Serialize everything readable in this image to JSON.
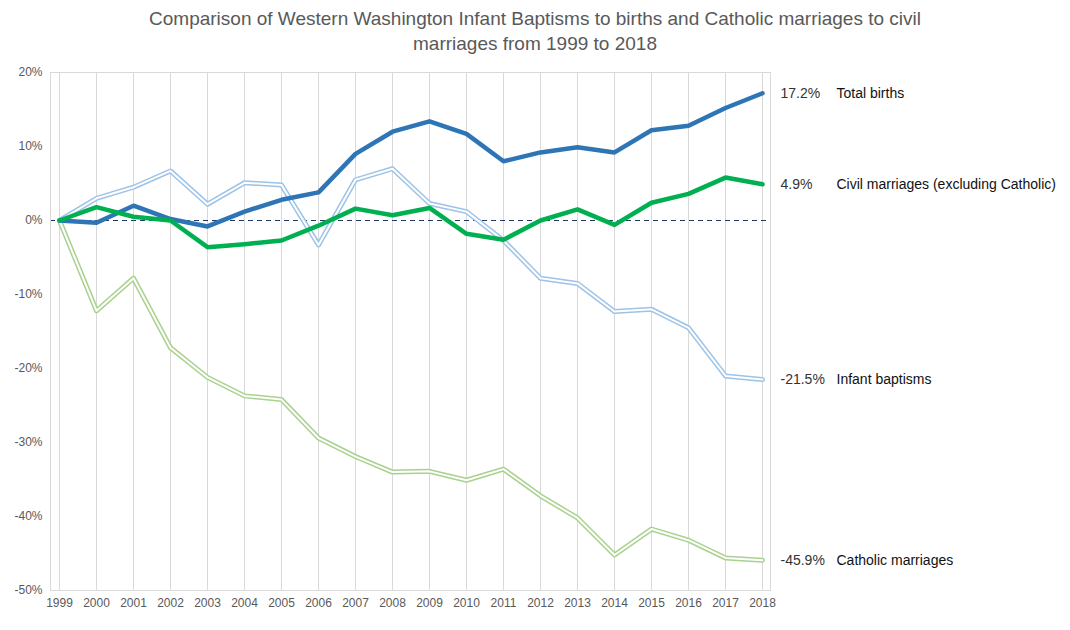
{
  "chart_data": {
    "type": "line",
    "title": "Comparison of Western Washington Infant Baptisms to births and Catholic marriages to civil marriages from 1999 to 2018",
    "categories": [
      "1999",
      "2000",
      "2001",
      "2002",
      "2003",
      "2004",
      "2005",
      "2006",
      "2007",
      "2008",
      "2009",
      "2010",
      "2011",
      "2012",
      "2013",
      "2014",
      "2015",
      "2016",
      "2017",
      "2018"
    ],
    "ylim": [
      -50,
      20
    ],
    "yticks": [
      {
        "value": -50,
        "label": "-50%"
      },
      {
        "value": -40,
        "label": "-40%"
      },
      {
        "value": -30,
        "label": "-30%"
      },
      {
        "value": -20,
        "label": "-20%"
      },
      {
        "value": -10,
        "label": "-10%"
      },
      {
        "value": 0,
        "label": "0%"
      },
      {
        "value": 10,
        "label": "10%"
      },
      {
        "value": 20,
        "label": "20%"
      }
    ],
    "grid": "x",
    "series": [
      {
        "name": "Total births",
        "color": "#2e75b6",
        "line_style": "solid",
        "values": [
          0,
          -0.3,
          2,
          0.2,
          -0.8,
          1.2,
          2.8,
          3.8,
          9,
          12,
          13.4,
          11.7,
          8,
          9.2,
          9.9,
          9.2,
          12.2,
          12.8,
          15.2,
          17.2
        ],
        "value_labels": [
          null,
          null,
          null,
          null,
          null,
          null,
          null,
          null,
          null,
          null,
          null,
          null,
          null,
          null,
          null,
          null,
          null,
          null,
          null,
          "17.2%"
        ]
      },
      {
        "name": "Civil marriages (excluding Catholic)",
        "color": "#00b050",
        "line_style": "solid",
        "values": [
          0,
          1.8,
          0.5,
          0,
          -3.6,
          -3.2,
          -2.7,
          -0.7,
          1.6,
          0.7,
          1.7,
          -1.8,
          -2.6,
          0,
          1.5,
          -0.6,
          2.4,
          3.6,
          5.8,
          4.9
        ],
        "value_labels": [
          null,
          null,
          null,
          null,
          null,
          null,
          null,
          null,
          null,
          null,
          null,
          null,
          null,
          null,
          null,
          null,
          null,
          null,
          null,
          "4.9%"
        ]
      },
      {
        "name": "Infant baptisms",
        "color": "#9dc3e6",
        "line_style": "double",
        "values": [
          0,
          3,
          4.5,
          6.7,
          2.2,
          5.1,
          4.8,
          -3.3,
          5.5,
          7,
          2.3,
          1.2,
          -2.7,
          -7.8,
          -8.5,
          -12.3,
          -12,
          -14.5,
          -21,
          -21.5
        ],
        "value_labels": [
          null,
          null,
          null,
          null,
          null,
          null,
          null,
          null,
          null,
          null,
          null,
          null,
          null,
          null,
          null,
          null,
          null,
          null,
          null,
          "-21.5%"
        ]
      },
      {
        "name": "Catholic marriages",
        "color": "#a9d18e",
        "line_style": "double",
        "values": [
          0,
          -12.2,
          -7.8,
          -17.2,
          -21.2,
          -23.7,
          -24.2,
          -29.4,
          -31.9,
          -34,
          -33.9,
          -35.1,
          -33.6,
          -37.2,
          -40.2,
          -45.2,
          -41.7,
          -43.2,
          -45.6,
          -45.9
        ],
        "value_labels": [
          null,
          null,
          null,
          null,
          null,
          null,
          null,
          null,
          null,
          null,
          null,
          null,
          null,
          null,
          null,
          null,
          null,
          null,
          null,
          "-45.9%"
        ]
      }
    ]
  }
}
